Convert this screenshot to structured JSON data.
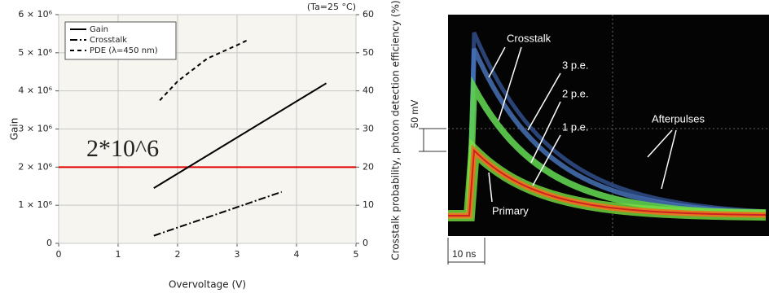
{
  "chart_data": {
    "type": "line",
    "annotation": "(Ta=25 °C)",
    "xlabel": "Overvoltage (V)",
    "ylabel": "Gain",
    "y2label": "Crosstalk probability, photon detection efficiency (%)",
    "xlim": [
      0,
      5
    ],
    "xticks": [
      0,
      1,
      2,
      3,
      4,
      5
    ],
    "ylim": [
      0,
      6000000
    ],
    "yticks": [
      0,
      {
        "value": 1000000,
        "label": "1 × 10⁶"
      },
      {
        "value": 2000000,
        "label": "2 × 10⁶"
      },
      {
        "value": 3000000,
        "label": "3 × 10⁶"
      },
      {
        "value": 4000000,
        "label": "4 × 10⁶"
      },
      {
        "value": 5000000,
        "label": "5 × 10⁶"
      },
      {
        "value": 6000000,
        "label": "6 × 10⁶"
      }
    ],
    "y2lim": [
      0,
      60
    ],
    "y2ticks": [
      0,
      10,
      20,
      30,
      40,
      50,
      60
    ],
    "grid": true,
    "legend": "top-left",
    "series": [
      {
        "name": "Gain",
        "color": "#000000",
        "dash": "solid",
        "x": [
          1.6,
          4.5
        ],
        "values": [
          1450000,
          4200000
        ]
      },
      {
        "name": "Crosstalk",
        "color": "#000000",
        "dash": "dash-dot",
        "axis": "y2",
        "x": [
          1.6,
          3.75
        ],
        "values": [
          2,
          13.5
        ]
      },
      {
        "name": "PDE (λ=450 nm)",
        "color": "#000000",
        "dash": "dashed",
        "axis": "y2",
        "x": [
          1.7,
          2.0,
          2.5,
          3.0,
          3.2
        ],
        "values": [
          37.5,
          42.5,
          48.5,
          52,
          53.5
        ]
      }
    ],
    "reference_line": {
      "value": 2000000,
      "label": "2*10^6",
      "color": "#e00000"
    }
  },
  "scope": {
    "labels": [
      "Crosstalk",
      "3 p.e.",
      "2 p.e.",
      "1 p.e.",
      "Afterpulses",
      "Primary"
    ],
    "vertical_scale": "50 mV",
    "horizontal_scale": "10 ns"
  }
}
